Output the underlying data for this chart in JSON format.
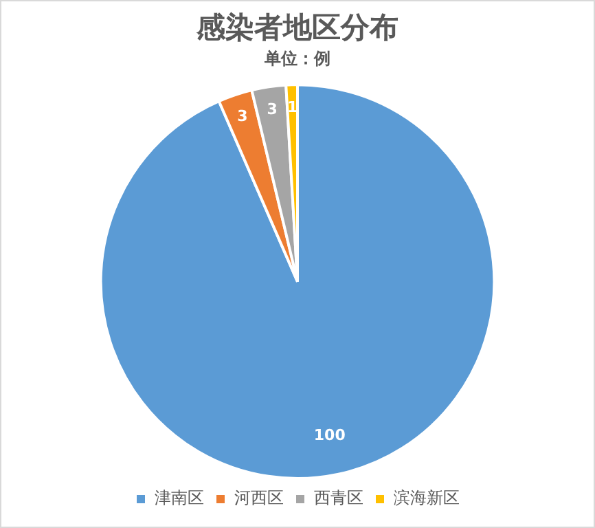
{
  "chart_data": {
    "type": "pie",
    "title": "感染者地区分布",
    "subtitle": "单位：例",
    "categories": [
      "津南区",
      "河西区",
      "西青区",
      "滨海新区"
    ],
    "values": [
      100,
      3,
      3,
      1
    ],
    "colors": [
      "#5b9bd5",
      "#ed7d31",
      "#a5a5a5",
      "#ffc000"
    ],
    "data_labels": true,
    "legend": "bottom"
  }
}
